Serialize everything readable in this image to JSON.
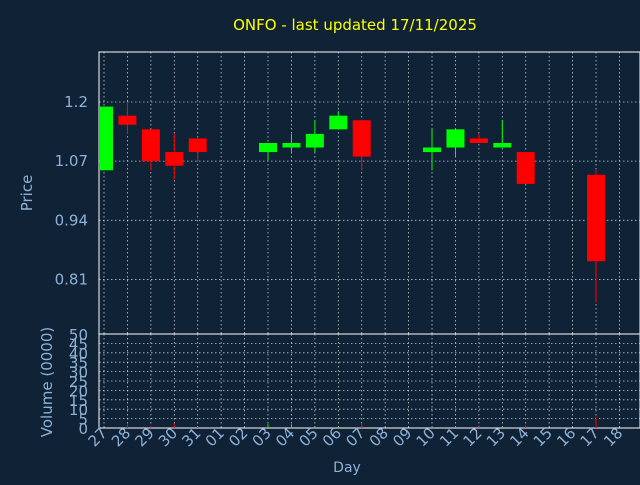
{
  "chart_data": {
    "type": "candlestick",
    "title": "ONFO - last updated 17/11/2025",
    "xlabel": "Day",
    "price": {
      "ylabel": "Price",
      "yticks": [
        "1.2",
        "1.07",
        "0.94",
        "0.81"
      ],
      "ytick_values": [
        1.2,
        1.07,
        0.94,
        0.81
      ],
      "ylim": [
        0.69,
        1.31
      ]
    },
    "volume": {
      "ylabel": "Volume (0000)",
      "yticks": [
        "50",
        "45",
        "40",
        "35",
        "30",
        "25",
        "20",
        "15",
        "10",
        "5",
        "0"
      ],
      "ytick_values": [
        50,
        45,
        40,
        35,
        30,
        25,
        20,
        15,
        10,
        5,
        0
      ],
      "ylim": [
        0,
        50
      ]
    },
    "x_tick_labels": [
      "27",
      "28",
      "29",
      "30",
      "31",
      "01",
      "02",
      "03",
      "04",
      "05",
      "06",
      "07",
      "08",
      "09",
      "10",
      "11",
      "12",
      "13",
      "14",
      "15",
      "16",
      "17",
      "18"
    ],
    "colors": {
      "up": "#00ff00",
      "down": "#ff0000",
      "grid": "#ffffff",
      "axis_text": "#8eb2d6",
      "title": "#ffff00",
      "background": "#0f2236"
    },
    "grid": true,
    "candles": [
      {
        "day": "27",
        "open": 1.05,
        "close": 1.19,
        "high": 1.19,
        "low": 1.05,
        "volume": 0
      },
      {
        "day": "28",
        "open": 1.17,
        "close": 1.15,
        "high": 1.2,
        "low": 1.13,
        "volume": 2
      },
      {
        "day": "29",
        "open": 1.14,
        "close": 1.07,
        "high": 1.14,
        "low": 1.05,
        "volume": 1
      },
      {
        "day": "30",
        "open": 1.09,
        "close": 1.06,
        "high": 1.13,
        "low": 1.03,
        "volume": 2.5
      },
      {
        "day": "31",
        "open": 1.12,
        "close": 1.09,
        "high": 1.12,
        "low": 1.07,
        "volume": 0.5
      },
      {
        "day": "03",
        "open": 1.09,
        "close": 1.11,
        "high": 1.11,
        "low": 1.07,
        "volume": 2
      },
      {
        "day": "04",
        "open": 1.1,
        "close": 1.11,
        "high": 1.13,
        "low": 1.09,
        "volume": 2
      },
      {
        "day": "05",
        "open": 1.1,
        "close": 1.13,
        "high": 1.16,
        "low": 1.09,
        "volume": 0.5
      },
      {
        "day": "06",
        "open": 1.14,
        "close": 1.17,
        "high": 1.18,
        "low": 1.14,
        "volume": 0.5
      },
      {
        "day": "07",
        "open": 1.16,
        "close": 1.08,
        "high": 1.16,
        "low": 1.05,
        "volume": 2
      },
      {
        "day": "10",
        "open": 1.09,
        "close": 1.1,
        "high": 1.14,
        "low": 1.05,
        "volume": 0.5
      },
      {
        "day": "11",
        "open": 1.1,
        "close": 1.14,
        "high": 1.14,
        "low": 1.08,
        "volume": 0.5
      },
      {
        "day": "12",
        "open": 1.12,
        "close": 1.11,
        "high": 1.13,
        "low": 1.11,
        "volume": 0.5
      },
      {
        "day": "13",
        "open": 1.1,
        "close": 1.11,
        "high": 1.16,
        "low": 1.1,
        "volume": 0.5
      },
      {
        "day": "14",
        "open": 1.09,
        "close": 1.02,
        "high": 1.09,
        "low": 1.02,
        "volume": 1.5
      },
      {
        "day": "17",
        "open": 1.04,
        "close": 0.85,
        "high": 1.05,
        "low": 0.76,
        "volume": 6
      }
    ]
  }
}
